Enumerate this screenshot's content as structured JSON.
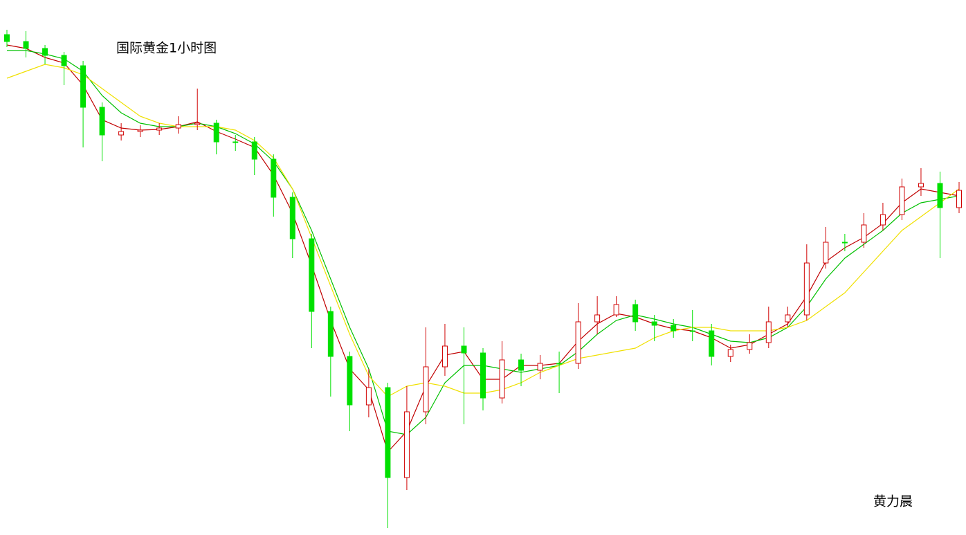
{
  "chart_data": {
    "type": "candlestick",
    "title": "国际黄金1小时图",
    "annotation": "黄力晨",
    "ylim": [
      0,
      773
    ],
    "up_color": "#d00000",
    "down_color": "#00e000",
    "open": [
      723,
      713,
      703,
      693,
      678,
      618,
      578,
      583,
      585,
      588,
      593,
      595,
      568,
      568,
      543,
      488,
      428,
      323,
      258,
      188,
      213,
      83,
      178,
      243,
      273,
      263,
      198,
      253,
      238,
      248,
      248,
      308,
      318,
      333,
      308,
      303,
      295,
      295,
      258,
      268,
      278,
      308,
      318,
      393,
      423,
      423,
      448,
      463,
      503,
      508,
      473
    ],
    "high": [
      730,
      728,
      708,
      698,
      685,
      625,
      595,
      592,
      595,
      605,
      645,
      600,
      578,
      575,
      550,
      495,
      435,
      330,
      265,
      240,
      220,
      215,
      300,
      305,
      300,
      270,
      280,
      262,
      260,
      265,
      335,
      345,
      345,
      340,
      318,
      312,
      325,
      305,
      275,
      290,
      330,
      330,
      420,
      445,
      435,
      465,
      480,
      515,
      530,
      525,
      510
    ],
    "low": [
      705,
      690,
      680,
      650,
      560,
      540,
      570,
      575,
      578,
      580,
      585,
      550,
      555,
      520,
      460,
      400,
      270,
      200,
      150,
      170,
      10,
      65,
      160,
      230,
      160,
      180,
      190,
      215,
      225,
      205,
      240,
      290,
      315,
      295,
      280,
      285,
      280,
      245,
      250,
      262,
      270,
      300,
      310,
      385,
      410,
      415,
      440,
      455,
      490,
      400,
      465
    ],
    "close": [
      713,
      703,
      693,
      678,
      618,
      578,
      583,
      585,
      588,
      593,
      595,
      568,
      568,
      543,
      488,
      428,
      323,
      258,
      188,
      213,
      83,
      178,
      243,
      273,
      263,
      198,
      253,
      238,
      248,
      248,
      308,
      318,
      333,
      308,
      303,
      295,
      295,
      258,
      268,
      278,
      308,
      318,
      393,
      423,
      423,
      448,
      463,
      503,
      508,
      473,
      498
    ],
    "series": [
      {
        "color": "#c00000",
        "values": [
          708,
          703,
          690,
          682,
          650,
          600,
          588,
          585,
          586,
          590,
          597,
          583,
          572,
          560,
          520,
          465,
          390,
          310,
          240,
          210,
          120,
          150,
          215,
          260,
          265,
          225,
          225,
          245,
          245,
          248,
          280,
          305,
          320,
          315,
          305,
          298,
          295,
          285,
          270,
          275,
          290,
          305,
          345,
          395,
          415,
          430,
          450,
          480,
          500,
          495,
          490
        ]
      },
      {
        "color": "#00c000",
        "values": [
          700,
          700,
          695,
          688,
          670,
          635,
          610,
          595,
          590,
          590,
          595,
          590,
          580,
          565,
          540,
          500,
          440,
          370,
          300,
          240,
          150,
          145,
          170,
          220,
          245,
          245,
          240,
          235,
          240,
          245,
          265,
          290,
          310,
          318,
          312,
          305,
          300,
          290,
          280,
          278,
          285,
          300,
          330,
          370,
          400,
          420,
          440,
          465,
          480,
          485,
          490
        ]
      },
      {
        "color": "#f0e000",
        "values": [
          660,
          670,
          680,
          675,
          665,
          645,
          625,
          605,
          595,
          590,
          590,
          590,
          585,
          570,
          545,
          500,
          430,
          360,
          290,
          230,
          200,
          215,
          220,
          215,
          205,
          205,
          210,
          220,
          235,
          245,
          255,
          260,
          265,
          270,
          285,
          295,
          300,
          300,
          295,
          295,
          295,
          300,
          310,
          330,
          350,
          380,
          410,
          440,
          460,
          480,
          500
        ]
      }
    ]
  }
}
